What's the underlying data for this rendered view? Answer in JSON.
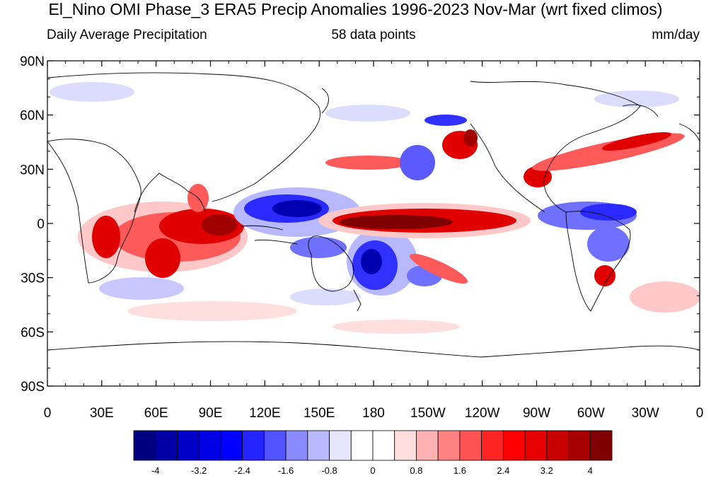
{
  "title": "El_Nino OMI Phase_3 ERA5 Precip Anomalies 1996-2023 Nov-Mar (wrt fixed climos)",
  "subtitle_left": "Daily Average Precipitation",
  "subtitle_center": "58 data points",
  "subtitle_right": "mm/day",
  "lat_ticks": [
    {
      "value": 90,
      "label": "90N"
    },
    {
      "value": 60,
      "label": "60N"
    },
    {
      "value": 30,
      "label": "30N"
    },
    {
      "value": 0,
      "label": "0"
    },
    {
      "value": -30,
      "label": "30S"
    },
    {
      "value": -60,
      "label": "60S"
    },
    {
      "value": -90,
      "label": "90S"
    }
  ],
  "lon_ticks": [
    {
      "value": 0,
      "label": "0"
    },
    {
      "value": 30,
      "label": "30E"
    },
    {
      "value": 60,
      "label": "60E"
    },
    {
      "value": 90,
      "label": "90E"
    },
    {
      "value": 120,
      "label": "120E"
    },
    {
      "value": 150,
      "label": "150E"
    },
    {
      "value": 180,
      "label": "180"
    },
    {
      "value": 210,
      "label": "150W"
    },
    {
      "value": 240,
      "label": "120W"
    },
    {
      "value": 270,
      "label": "90W"
    },
    {
      "value": 300,
      "label": "60W"
    },
    {
      "value": 330,
      "label": "30W"
    },
    {
      "value": 360,
      "label": "0"
    }
  ],
  "colorbar": {
    "colors": [
      "#00007f",
      "#0000a6",
      "#0000c8",
      "#0000e6",
      "#0000ff",
      "#2323ff",
      "#5252ff",
      "#8a8aff",
      "#b8b8ff",
      "#e6e6ff",
      "#ffffff",
      "#ffffff",
      "#ffdede",
      "#ffb0b0",
      "#ff8282",
      "#ff5252",
      "#ff2424",
      "#ff0000",
      "#e60000",
      "#c80000",
      "#a60000",
      "#800000"
    ],
    "labels": [
      {
        "index": 1,
        "text": "-4"
      },
      {
        "index": 3,
        "text": "-3.2"
      },
      {
        "index": 5,
        "text": "-2.4"
      },
      {
        "index": 7,
        "text": "-1.6"
      },
      {
        "index": 9,
        "text": "-0.8"
      },
      {
        "index": 11,
        "text": "0"
      },
      {
        "index": 13,
        "text": "0.8"
      },
      {
        "index": 15,
        "text": "1.6"
      },
      {
        "index": 17,
        "text": "2.4"
      },
      {
        "index": 19,
        "text": "3.2"
      },
      {
        "index": 21,
        "text": "4"
      }
    ]
  },
  "anomaly_colors": {
    "strong_wet": "#7f0000",
    "wet": "#e00000",
    "moderate_wet": "#ff5a5a",
    "light_wet": "#ffc8c8",
    "strong_dry": "#0000b0",
    "dry": "#2a2aff",
    "moderate_dry": "#7070ff",
    "light_dry": "#c8c8ff"
  }
}
